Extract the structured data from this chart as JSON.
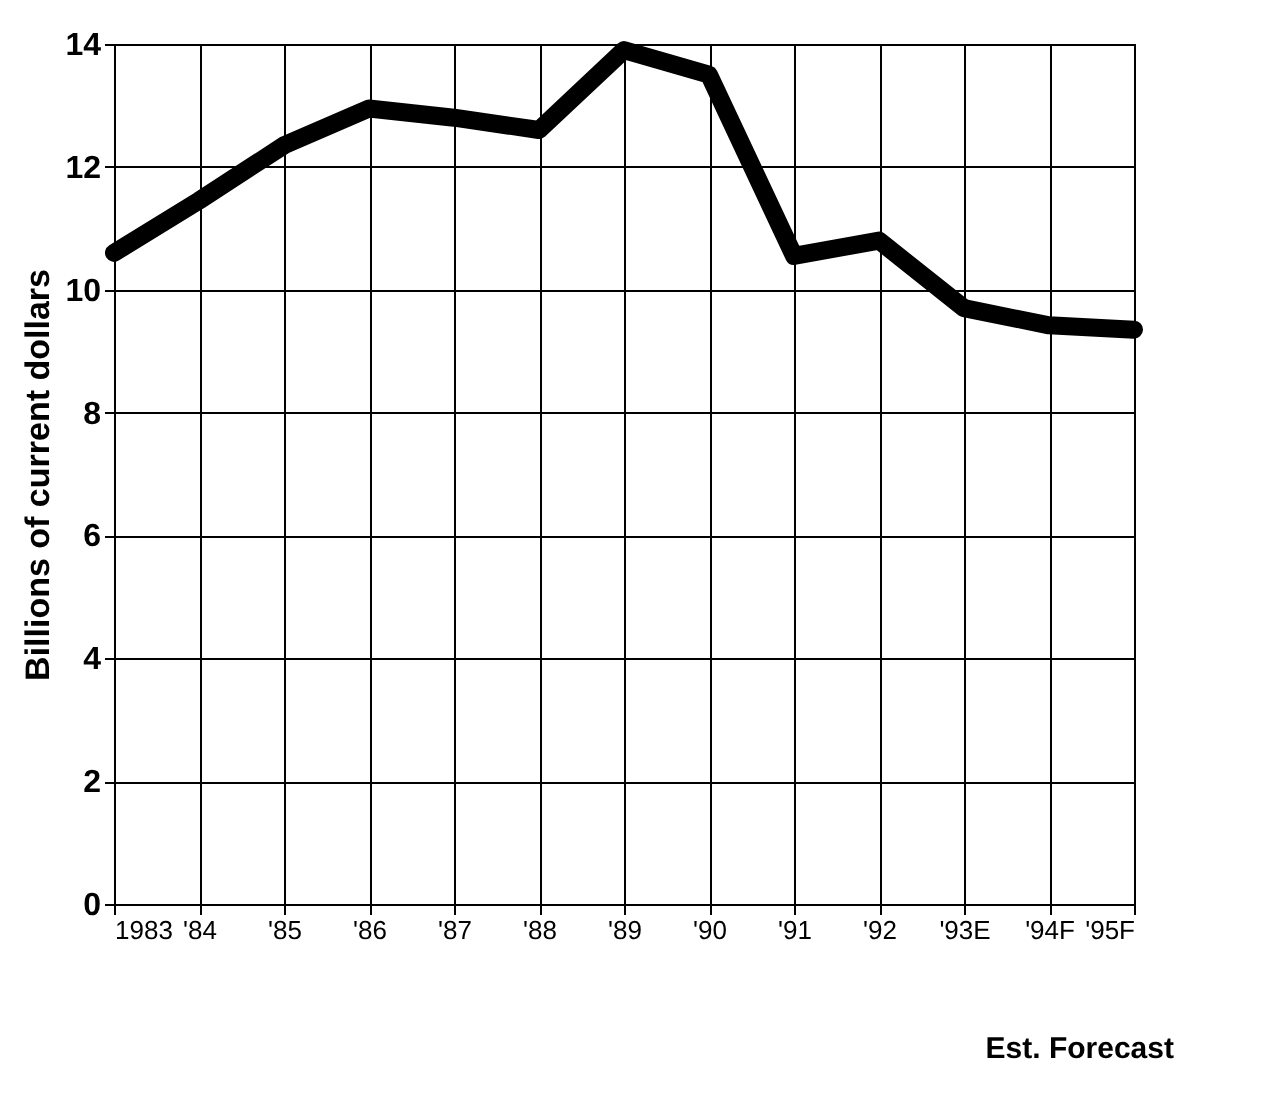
{
  "chart_data": {
    "type": "line",
    "ylabel": "Billions of current dollars",
    "categories": [
      "1983",
      "'84",
      "'85",
      "'86",
      "'87",
      "'88",
      "'89",
      "'90",
      "'91",
      "'92",
      "'93E",
      "'94F",
      "'95F"
    ],
    "series": [
      {
        "color": "#000000",
        "values": [
          10.6,
          11.45,
          12.35,
          12.95,
          12.8,
          12.6,
          13.9,
          13.5,
          10.55,
          10.8,
          9.7,
          9.42,
          9.35
        ]
      }
    ],
    "ylim": [
      0,
      14
    ],
    "yticks": [
      0,
      2,
      4,
      6,
      8,
      10,
      12,
      14
    ],
    "grid": true,
    "line_style": "solid",
    "annotations": [
      "Est. Forecast"
    ]
  }
}
